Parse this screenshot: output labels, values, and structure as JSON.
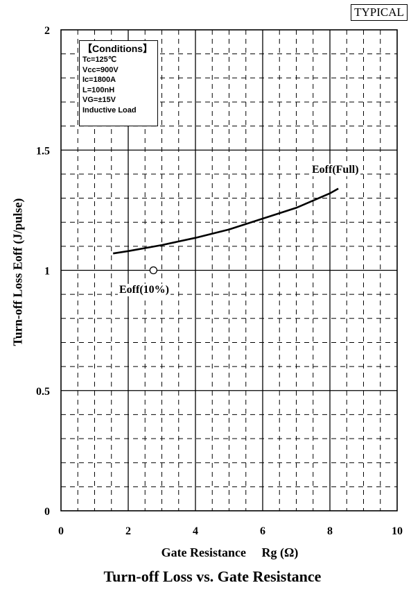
{
  "badge": "TYPICAL",
  "conditions": {
    "title": "【Conditions】",
    "lines": [
      "Tc=125℃",
      "Vcc=900V",
      "Ic=1800A",
      "L=100nH",
      "VG=±15V",
      "Inductive Load"
    ]
  },
  "chart_data": {
    "type": "line",
    "title": "Turn-off Loss vs. Gate Resistance",
    "xlabel": "Gate Resistance     Rg (Ω)",
    "ylabel": "Turn-off Loss     Eoff (J/pulse)",
    "xlim": [
      0,
      10
    ],
    "ylim": [
      0,
      2
    ],
    "x_ticks": [
      "0",
      "2",
      "4",
      "6",
      "8",
      "10"
    ],
    "y_ticks": [
      "0",
      "0.5",
      "1",
      "1.5",
      "2"
    ],
    "grid": true,
    "series": [
      {
        "name": "Eoff(Full)",
        "x": [
          1.55,
          2.0,
          3.0,
          4.0,
          5.0,
          6.0,
          7.0,
          8.0,
          8.25
        ],
        "y": [
          1.07,
          1.08,
          1.105,
          1.135,
          1.17,
          1.215,
          1.26,
          1.32,
          1.34
        ]
      },
      {
        "name": "Eoff(10%)",
        "x": [
          2.75
        ],
        "y": [
          1.0
        ]
      }
    ]
  }
}
